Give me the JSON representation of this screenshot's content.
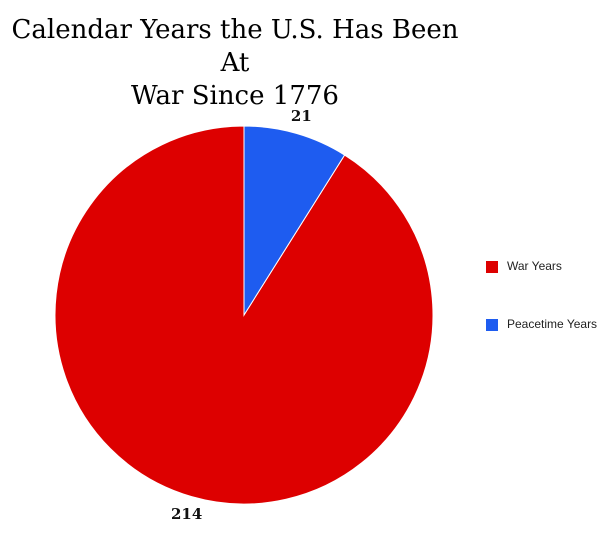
{
  "chart_data": {
    "type": "pie",
    "title": "Calendar Years the U.S. Has Been At War Since 1776",
    "title_lines": [
      "Calendar Years the U.S. Has Been At",
      "War Since 1776"
    ],
    "categories": [
      "War Years",
      "Peacetime Years"
    ],
    "values": [
      214,
      21
    ],
    "colors": [
      "#dd0000",
      "#1e5cf0"
    ],
    "data_labels": [
      "214",
      "21"
    ],
    "legend_position": "right"
  },
  "legend": {
    "items": [
      {
        "label": "War Years",
        "color": "#dd0000"
      },
      {
        "label": "Peacetime Years",
        "color": "#1e5cf0"
      }
    ]
  }
}
